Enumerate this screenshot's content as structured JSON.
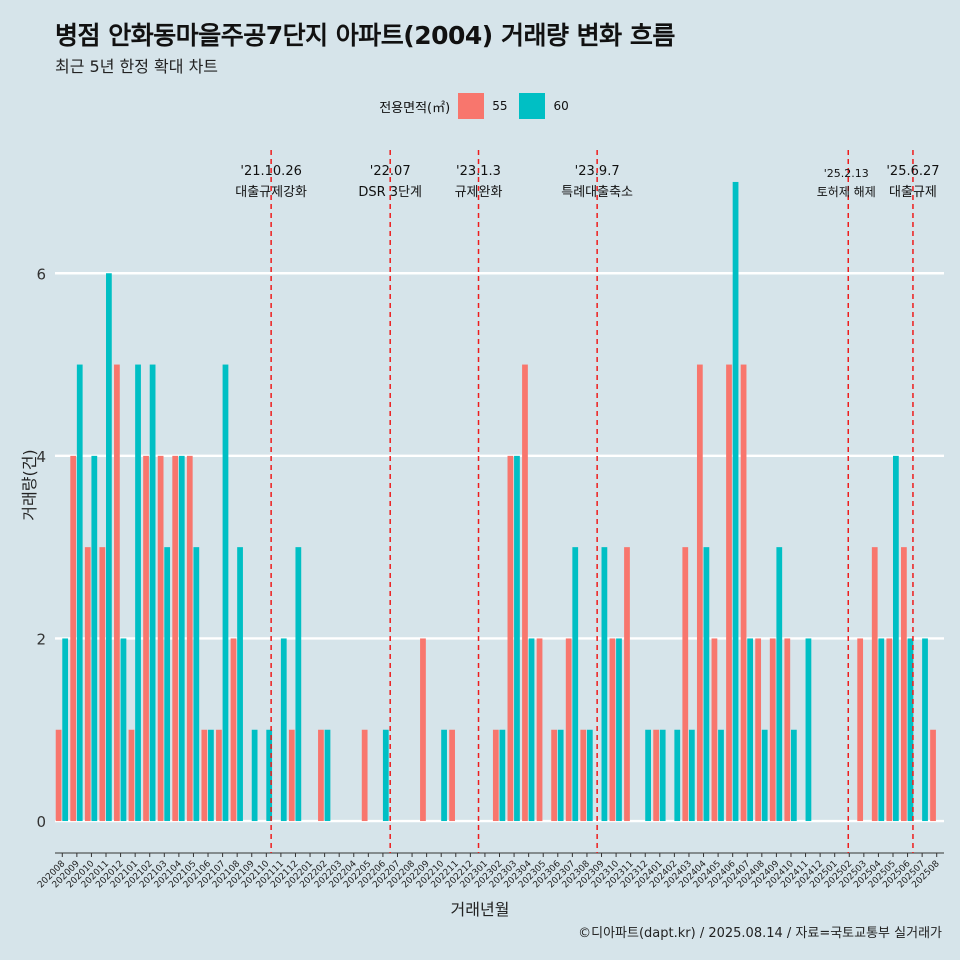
{
  "title": "병점 안화동마을주공7단지 아파트(2004) 거래량 변화 흐름",
  "subtitle": "최근 5년 한정 확대 차트",
  "caption": "©디아파트(dapt.kr) / 2025.08.14 / 자료=국토교통부 실거래가",
  "legend": {
    "title": "전용면적(㎡)",
    "items": [
      {
        "label": "55",
        "color": "#f8766d"
      },
      {
        "label": "60",
        "color": "#00bfc4"
      }
    ]
  },
  "chart_data": {
    "type": "bar",
    "title": "병점 안화동마을주공7단지 아파트(2004) 거래량 변화 흐름",
    "xlabel": "거래년월",
    "ylabel": "거래량(건)",
    "ylim": [
      -0.35,
      7.35
    ],
    "yticks": [
      0,
      2,
      4,
      6
    ],
    "categories": [
      "202008",
      "202009",
      "202010",
      "202011",
      "202012",
      "202101",
      "202102",
      "202103",
      "202104",
      "202105",
      "202106",
      "202107",
      "202108",
      "202109",
      "202110",
      "202111",
      "202112",
      "202201",
      "202202",
      "202203",
      "202204",
      "202205",
      "202206",
      "202207",
      "202208",
      "202209",
      "202210",
      "202211",
      "202212",
      "202301",
      "202302",
      "202303",
      "202304",
      "202305",
      "202306",
      "202307",
      "202308",
      "202309",
      "202310",
      "202311",
      "202312",
      "202401",
      "202402",
      "202403",
      "202404",
      "202405",
      "202406",
      "202407",
      "202408",
      "202409",
      "202410",
      "202411",
      "202412",
      "202501",
      "202502",
      "202503",
      "202504",
      "202505",
      "202506",
      "202507",
      "202508"
    ],
    "series": [
      {
        "name": "55",
        "color": "#f8766d",
        "values": [
          1,
          4,
          3,
          3,
          5,
          1,
          4,
          4,
          4,
          4,
          1,
          1,
          2,
          0,
          0,
          0,
          1,
          0,
          1,
          0,
          0,
          1,
          0,
          0,
          0,
          2,
          0,
          1,
          0,
          0,
          1,
          4,
          5,
          2,
          1,
          2,
          1,
          0,
          2,
          3,
          0,
          1,
          0,
          3,
          5,
          2,
          5,
          5,
          2,
          2,
          2,
          0,
          0,
          0,
          0,
          2,
          3,
          2,
          3,
          0,
          1
        ]
      },
      {
        "name": "60",
        "color": "#00bfc4",
        "values": [
          2,
          5,
          4,
          6,
          2,
          5,
          5,
          3,
          4,
          3,
          1,
          5,
          3,
          1,
          1,
          2,
          3,
          0,
          1,
          0,
          0,
          0,
          1,
          0,
          0,
          0,
          1,
          0,
          0,
          0,
          1,
          4,
          2,
          0,
          1,
          3,
          1,
          3,
          2,
          0,
          1,
          1,
          1,
          1,
          3,
          1,
          7,
          2,
          1,
          3,
          1,
          2,
          0,
          0,
          0,
          0,
          2,
          4,
          2,
          2,
          0
        ]
      }
    ],
    "events": [
      {
        "date": "'21.10.26",
        "label": "대출규제강화",
        "month": "202110",
        "frac": 0.83
      },
      {
        "date": "'22.07",
        "label": "DSR 3단계",
        "month": "202207",
        "frac": 0.0
      },
      {
        "date": "'23.1.3",
        "label": "규제완화",
        "month": "202301",
        "frac": 0.06
      },
      {
        "date": "'23.9.7",
        "label": "특례대출축소",
        "month": "202309",
        "frac": 0.2
      },
      {
        "date": "'25.2.13",
        "label": "토허제 해제",
        "month": "202502",
        "frac": 0.43
      },
      {
        "date": "'25.6.27",
        "label": "대출규제",
        "month": "202506",
        "frac": 0.87
      }
    ]
  }
}
